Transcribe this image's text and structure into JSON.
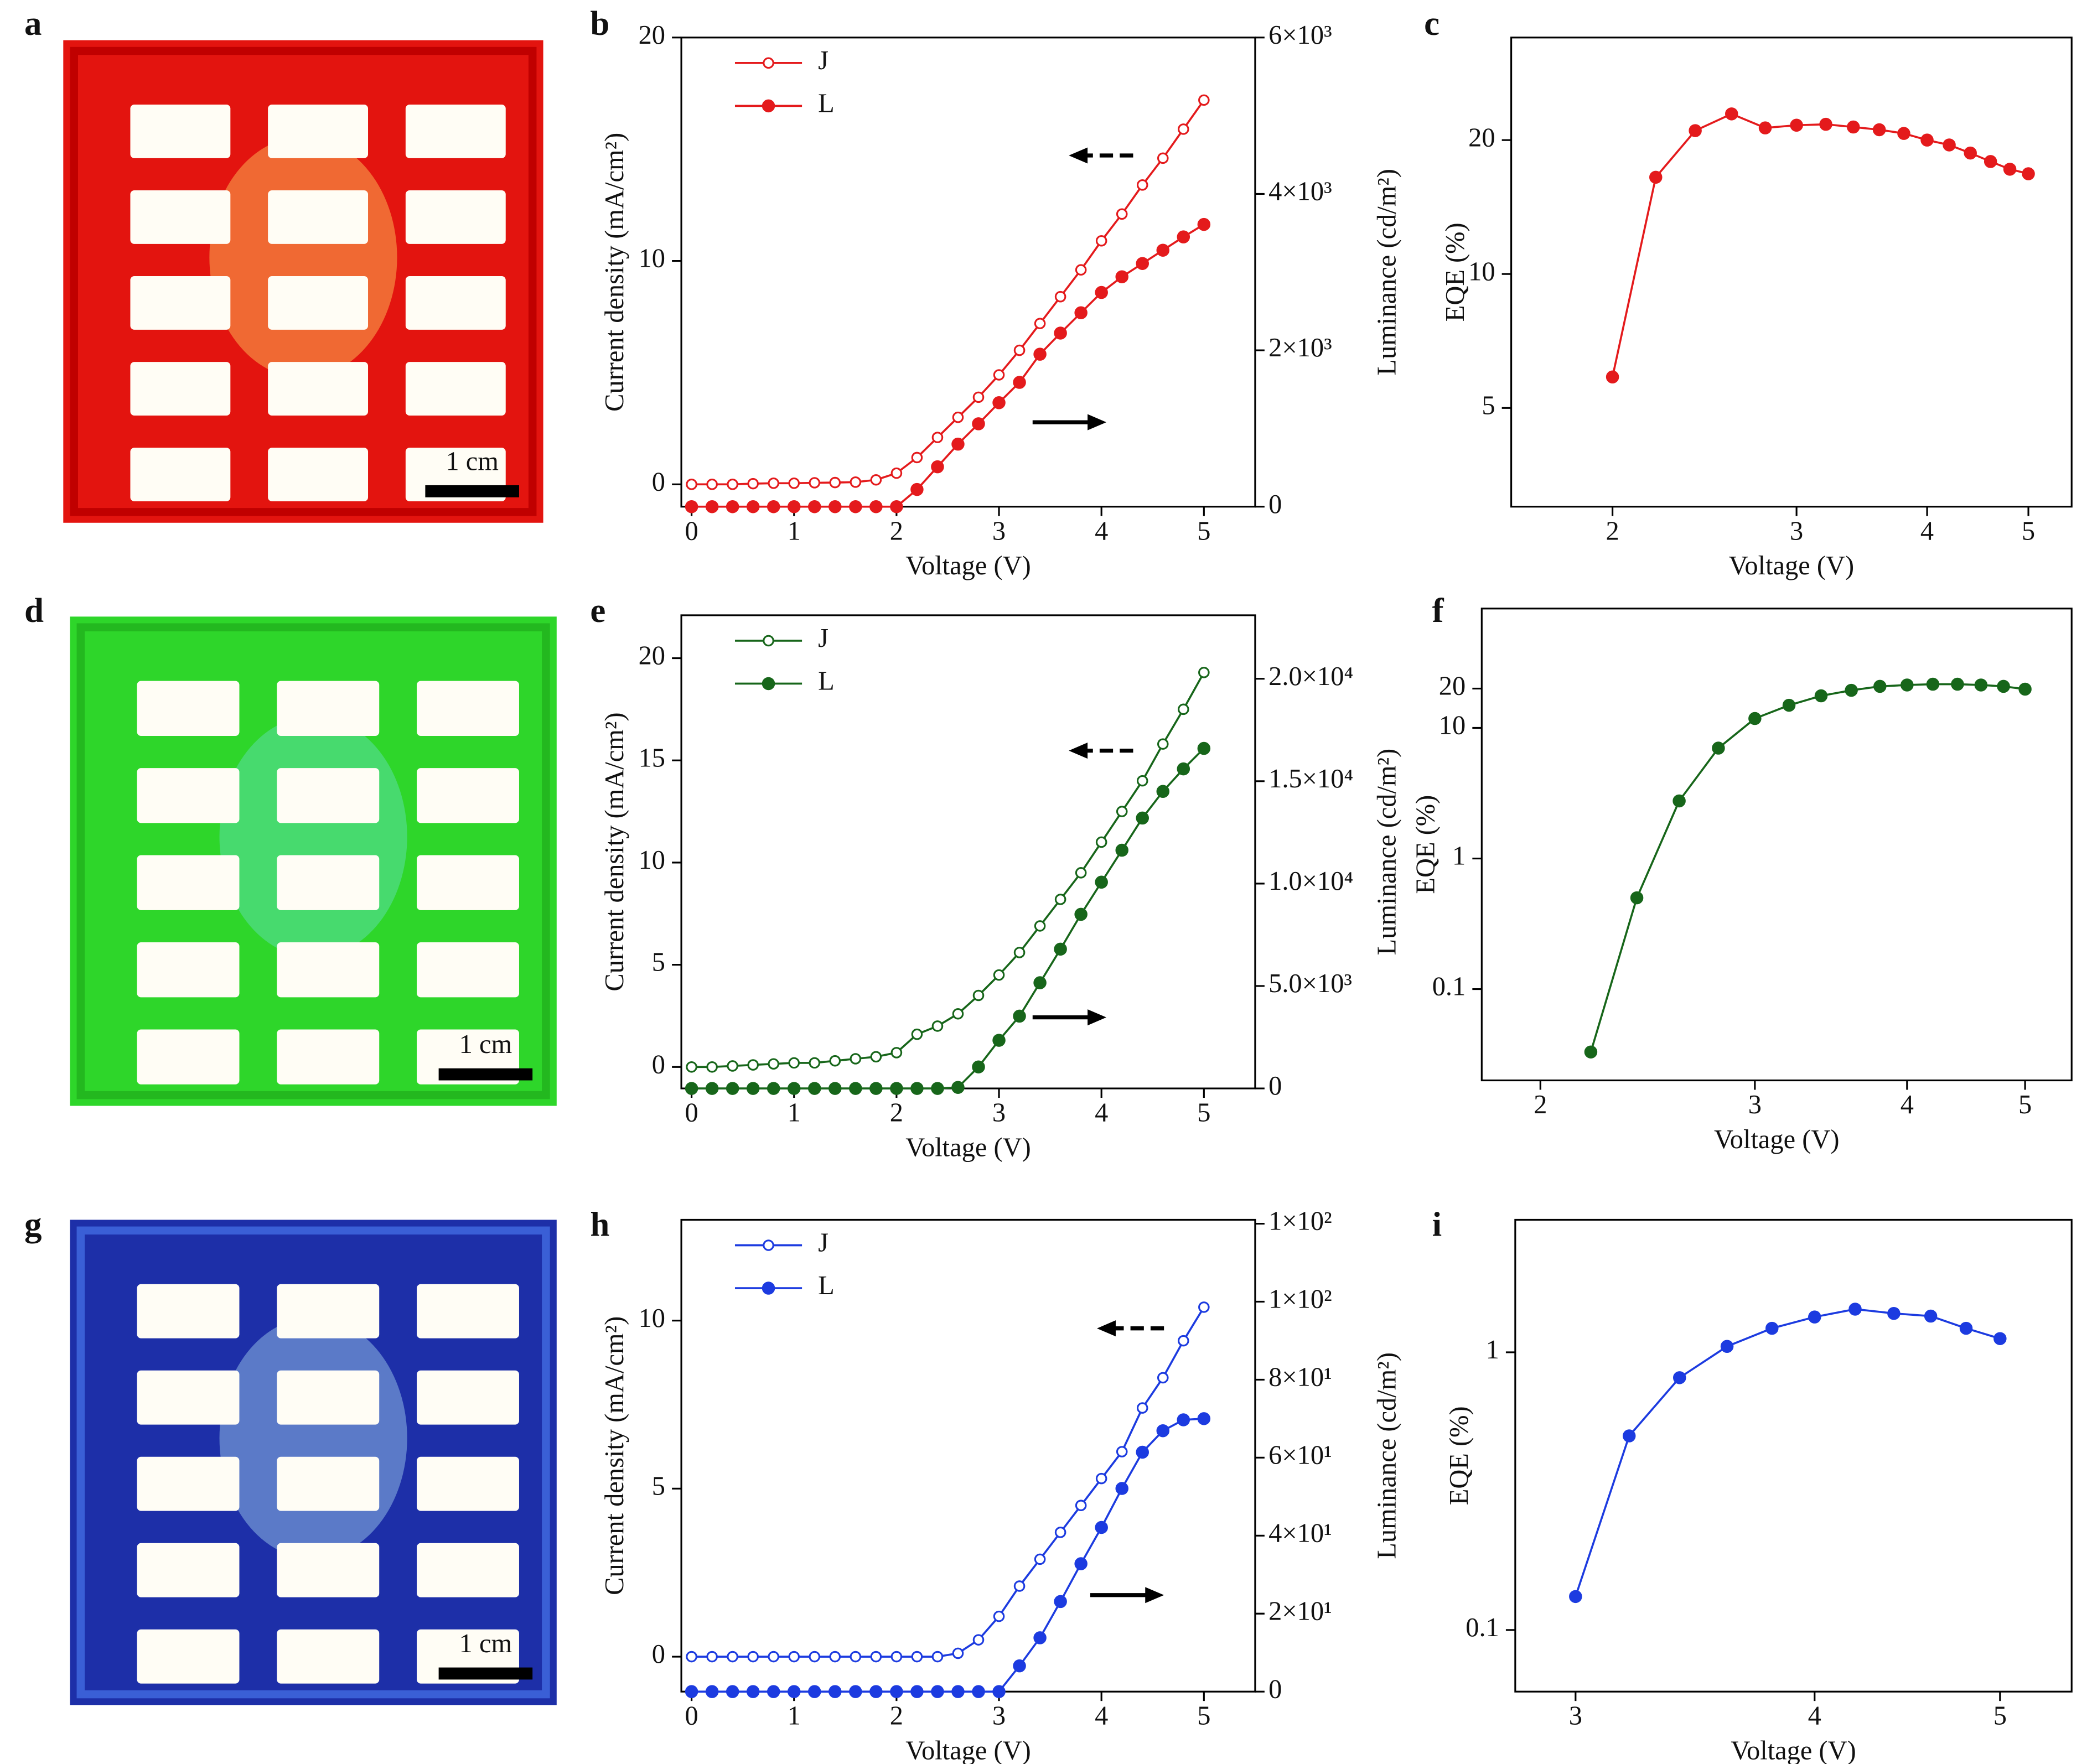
{
  "chart_data": [
    {
      "type": "line",
      "panel_label": "b",
      "xlabel": "Voltage (V)",
      "ylabel": "Current density (mA/cm²)",
      "y2label": "Luminance (cd/m²)",
      "x": [
        0,
        0.2,
        0.4,
        0.6,
        0.8,
        1.0,
        1.2,
        1.4,
        1.6,
        1.8,
        2.0,
        2.2,
        2.4,
        2.6,
        2.8,
        3.0,
        3.2,
        3.4,
        3.6,
        3.8,
        4.0,
        4.2,
        4.4,
        4.6,
        4.8,
        5.0
      ],
      "series": [
        {
          "name": "J",
          "color": "#e41a1c",
          "marker": "open",
          "values": [
            0,
            0,
            0,
            0.03,
            0.05,
            0.05,
            0.07,
            0.08,
            0.1,
            0.2,
            0.5,
            1.2,
            2.1,
            3.0,
            3.9,
            4.9,
            6.0,
            7.2,
            8.4,
            9.6,
            10.9,
            12.1,
            13.4,
            14.6,
            15.9,
            17.2
          ]
        },
        {
          "name": "L",
          "color": "#e41a1c",
          "marker": "filled",
          "axis": "y2",
          "values": [
            0,
            0,
            0,
            0,
            0,
            0,
            0,
            0,
            0,
            0,
            0,
            220,
            510,
            800,
            1060,
            1330,
            1590,
            1950,
            2220,
            2480,
            2740,
            2940,
            3110,
            3280,
            3450,
            3610
          ]
        }
      ],
      "xlim": [
        -0.1,
        5.5
      ],
      "ylim": [
        -1,
        20
      ],
      "y2lim": [
        0,
        6000
      ],
      "xticks": [
        0,
        1,
        2,
        3,
        4,
        5
      ],
      "yticks": [
        0,
        10,
        20
      ],
      "y2ticks": [
        0,
        {
          "value": 2000,
          "label": "2×10³"
        },
        {
          "value": 4000,
          "label": "4×10³"
        },
        {
          "value": 6000,
          "label": "6×10³"
        }
      ]
    },
    {
      "type": "line",
      "panel_label": "c",
      "xlabel": "Voltage (V)",
      "ylabel": "EQE (%)",
      "xscale": "log",
      "yscale": "log",
      "x": [
        2.0,
        2.2,
        2.4,
        2.6,
        2.8,
        3.0,
        3.2,
        3.4,
        3.6,
        3.8,
        4.0,
        4.2,
        4.4,
        4.6,
        4.8,
        5.0
      ],
      "series": [
        {
          "color": "#e41a1c",
          "marker": "filled",
          "values": [
            5.87,
            16.5,
            21.0,
            22.9,
            21.3,
            21.6,
            21.7,
            21.4,
            21.1,
            20.7,
            20.0,
            19.5,
            18.7,
            17.9,
            17.2,
            16.8
          ]
        }
      ],
      "xlim": [
        1.6,
        5.5
      ],
      "ylim": [
        3,
        34
      ],
      "xticks": [
        2,
        3,
        4,
        5
      ],
      "yticks": [
        5,
        10,
        20
      ]
    },
    {
      "type": "line",
      "panel_label": "e",
      "xlabel": "Voltage (V)",
      "ylabel": "Current density (mA/cm²)",
      "y2label": "Luminance (cd/m²)",
      "x": [
        0,
        0.2,
        0.4,
        0.6,
        0.8,
        1.0,
        1.2,
        1.4,
        1.6,
        1.8,
        2.0,
        2.2,
        2.4,
        2.6,
        2.8,
        3.0,
        3.2,
        3.4,
        3.6,
        3.8,
        4.0,
        4.2,
        4.4,
        4.6,
        4.8,
        5.0
      ],
      "series": [
        {
          "name": "J",
          "color": "#17661a",
          "marker": "open",
          "values": [
            0,
            0,
            0.05,
            0.1,
            0.15,
            0.2,
            0.2,
            0.3,
            0.4,
            0.5,
            0.7,
            1.6,
            2.0,
            2.6,
            3.5,
            4.5,
            5.6,
            6.9,
            8.2,
            9.5,
            11.0,
            12.5,
            14.0,
            15.8,
            17.5,
            19.3
          ]
        },
        {
          "name": "L",
          "color": "#17661a",
          "marker": "filled",
          "axis": "y2",
          "values": [
            0,
            0,
            0,
            0,
            0,
            0,
            0,
            0,
            0,
            0,
            0,
            0,
            0,
            50,
            1050,
            2350,
            3530,
            5160,
            6800,
            8500,
            10070,
            11630,
            13200,
            14500,
            15600,
            16600
          ]
        }
      ],
      "xlim": [
        -0.1,
        5.5
      ],
      "ylim": [
        -1.05,
        22.1
      ],
      "y2lim": [
        0,
        23100
      ],
      "xticks": [
        0,
        1,
        2,
        3,
        4,
        5
      ],
      "yticks": [
        0,
        5,
        10,
        15,
        20
      ],
      "y2ticks": [
        0,
        {
          "value": 5000,
          "label": "5.0×10³"
        },
        {
          "value": 10000,
          "label": "1.0×10⁴"
        },
        {
          "value": 15000,
          "label": "1.5×10⁴"
        },
        {
          "value": 20000,
          "label": "2.0×10⁴"
        }
      ]
    },
    {
      "type": "line",
      "panel_label": "f",
      "xlabel": "Voltage (V)",
      "ylabel": "EQE (%)",
      "xscale": "log",
      "yscale": "log",
      "x": [
        2.2,
        2.4,
        2.6,
        2.8,
        3.0,
        3.2,
        3.4,
        3.6,
        3.8,
        4.0,
        4.2,
        4.4,
        4.6,
        4.8,
        5.0
      ],
      "series": [
        {
          "color": "#17661a",
          "marker": "filled",
          "values": [
            0.033,
            0.5,
            2.76,
            7.0,
            11.8,
            14.9,
            17.6,
            19.4,
            20.8,
            21.3,
            21.6,
            21.6,
            21.3,
            20.8,
            19.8
          ]
        }
      ],
      "xlim": [
        1.79,
        5.46
      ],
      "ylim": [
        0.02,
        82
      ],
      "xticks": [
        2,
        3,
        4,
        5
      ],
      "yticks": [
        0.1,
        1,
        10,
        20
      ]
    },
    {
      "type": "line",
      "panel_label": "h",
      "xlabel": "Voltage (V)",
      "ylabel": "Current density (mA/cm²)",
      "y2label": "Luminance (cd/m²)",
      "x": [
        0,
        0.2,
        0.4,
        0.6,
        0.8,
        1.0,
        1.2,
        1.4,
        1.6,
        1.8,
        2.0,
        2.2,
        2.4,
        2.6,
        2.8,
        3.0,
        3.2,
        3.4,
        3.6,
        3.8,
        4.0,
        4.2,
        4.4,
        4.6,
        4.8,
        5.0
      ],
      "series": [
        {
          "name": "J",
          "color": "#1c3be0",
          "marker": "open",
          "values": [
            0,
            0,
            0,
            0,
            0,
            0,
            0,
            0,
            0,
            0,
            0,
            0,
            0,
            0.1,
            0.5,
            1.2,
            2.1,
            2.9,
            3.7,
            4.5,
            5.3,
            6.1,
            7.4,
            8.3,
            9.4,
            10.4
          ]
        },
        {
          "name": "L",
          "color": "#1c3be0",
          "marker": "filled",
          "axis": "y2",
          "values": [
            0,
            0,
            0,
            0,
            0,
            0,
            0,
            0,
            0,
            0,
            0,
            0,
            0,
            0,
            0,
            0,
            6.6,
            13.8,
            23.1,
            32.8,
            42.1,
            52.1,
            61.4,
            66.9,
            69.7,
            70
          ]
        }
      ],
      "xlim": [
        -0.1,
        5.5
      ],
      "ylim": [
        -1.04,
        13
      ],
      "y2lim": [
        0,
        121
      ],
      "xticks": [
        0,
        1,
        2,
        3,
        4,
        5
      ],
      "yticks": [
        0,
        5,
        10
      ],
      "y2ticks": [
        0,
        {
          "value": 20,
          "label": "2×10¹"
        },
        {
          "value": 40,
          "label": "4×10¹"
        },
        {
          "value": 60,
          "label": "6×10¹"
        },
        {
          "value": 80,
          "label": "8×10¹"
        },
        {
          "value": 100,
          "label": "1×10²"
        },
        {
          "value": 120,
          "label": "1×10²"
        }
      ]
    },
    {
      "type": "line",
      "panel_label": "i",
      "xlabel": "Voltage (V)",
      "ylabel": "EQE (%)",
      "xscale": "log",
      "yscale": "log",
      "x": [
        3.0,
        3.2,
        3.4,
        3.6,
        3.8,
        4.0,
        4.2,
        4.4,
        4.6,
        4.8,
        5.0
      ],
      "series": [
        {
          "color": "#1c3be0",
          "marker": "filled",
          "values": [
            0.132,
            0.5,
            0.81,
            1.05,
            1.22,
            1.34,
            1.43,
            1.38,
            1.35,
            1.22,
            1.12
          ]
        }
      ],
      "xlim": [
        2.79,
        5.45
      ],
      "ylim": [
        0.06,
        3.0
      ],
      "xticks": [
        3,
        4,
        5
      ],
      "yticks": [
        0.1,
        1
      ]
    }
  ],
  "photos": [
    {
      "panel_label": "a",
      "scale_label": "1 cm"
    },
    {
      "panel_label": "d",
      "scale_label": "1 cm"
    },
    {
      "panel_label": "g",
      "scale_label": "1 cm"
    }
  ]
}
